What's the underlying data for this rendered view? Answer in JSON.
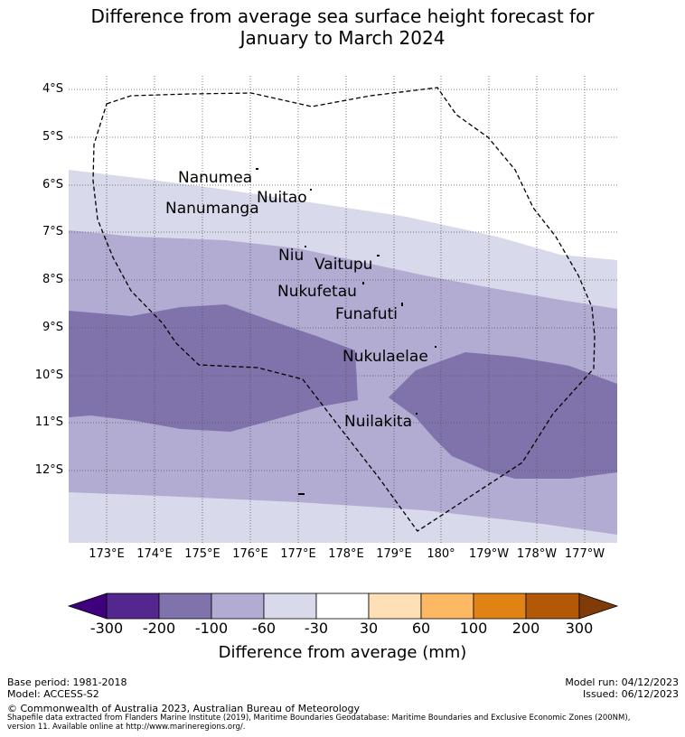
{
  "title_line1": "Difference from average sea surface height forecast for",
  "title_line2": "January to March 2024",
  "lat_labels": [
    "4°S",
    "5°S",
    "6°S",
    "7°S",
    "8°S",
    "9°S",
    "10°S",
    "11°S",
    "12°S"
  ],
  "lon_labels": [
    "173°E",
    "174°E",
    "175°E",
    "176°E",
    "177°E",
    "178°E",
    "179°E",
    "180°",
    "179°W",
    "178°W",
    "177°W"
  ],
  "islands": [
    "Nanumea",
    "Nuitao",
    "Nanumanga",
    "Niu",
    "Vaitupu",
    "Nukufetau",
    "Funafuti",
    "Nukulaelae",
    "Nuilakita"
  ],
  "colorbar": {
    "ticks": [
      "-300",
      "-200",
      "-100",
      "-60",
      "-30",
      "30",
      "60",
      "100",
      "200",
      "300"
    ],
    "label": "Difference from average (mm)",
    "colors": [
      "#3f007d",
      "#54278f",
      "#8073ac",
      "#b2abd2",
      "#d8daeb",
      "#ffffff",
      "#fee0b6",
      "#fdb863",
      "#e08214",
      "#b35806",
      "#7f3b08"
    ]
  },
  "footer": {
    "base_period": "Base period: 1981-2018",
    "model": "Model: ACCESS-S2",
    "model_run": "Model run: 04/12/2023",
    "issued": "Issued: 06/12/2023",
    "copyright": "© Commonwealth of Australia 2023, Australian Bureau of Meteorology",
    "source_line1": "Shapefile data extracted from Flanders Marine Institute (2019), Maritime Boundaries Geodatabase: Maritime Boundaries and Exclusive Economic Zones (200NM),",
    "source_line2": "version 11. Available online at http://www.marineregions.org/."
  }
}
